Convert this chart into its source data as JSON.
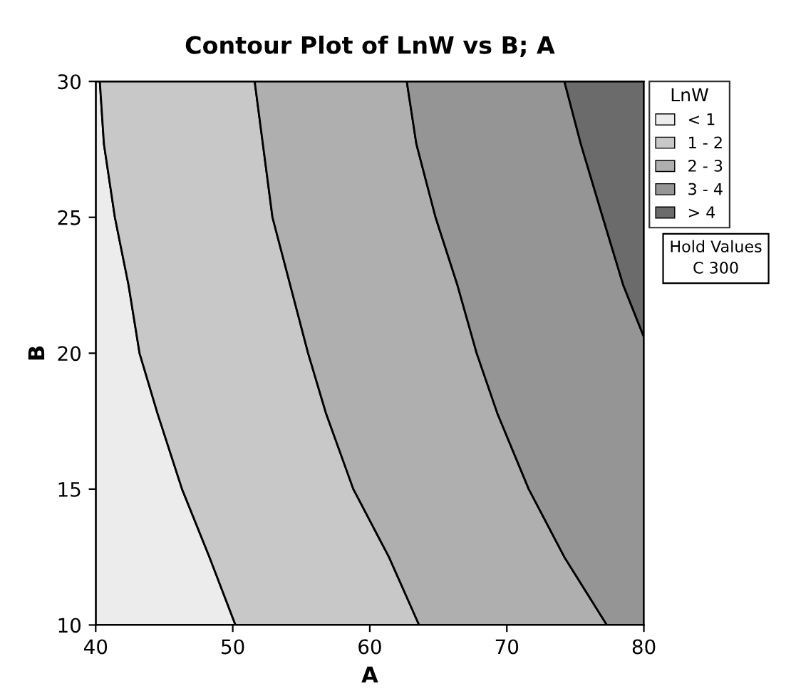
{
  "chart_data": {
    "type": "area",
    "title": "Contour Plot of LnW vs B; A",
    "xlabel": "A",
    "ylabel": "B",
    "legend_title": "LnW",
    "xlim": [
      40,
      80
    ],
    "ylim": [
      10,
      30
    ],
    "xticks": [
      40,
      50,
      60,
      70,
      80
    ],
    "yticks": [
      10,
      15,
      20,
      25,
      30
    ],
    "grid": false,
    "legend": "right",
    "series": [
      {
        "name": "< 1",
        "color": "#ececec",
        "x": [
          40,
          40.3,
          40.6,
          41.4,
          42.4,
          43.2,
          44.5,
          46.3,
          48.3,
          50.2,
          40
        ],
        "values": [
          30,
          30,
          27.7,
          25,
          22.5,
          20,
          17.8,
          15,
          12.5,
          10,
          10
        ]
      },
      {
        "name": "1 - 2",
        "color": "#c8c8c8",
        "x": [
          40.3,
          40.6,
          41.4,
          42.4,
          43.2,
          44.5,
          46.3,
          48.3,
          50.2,
          63.6,
          61.4,
          58.8,
          56.8,
          55.5,
          52.9,
          51.6
        ],
        "values": [
          30,
          27.7,
          25,
          22.5,
          20,
          17.8,
          15,
          12.5,
          10,
          10,
          12.5,
          15,
          17.8,
          20,
          25,
          30
        ]
      },
      {
        "name": "2 - 3",
        "color": "#afafaf",
        "x": [
          51.6,
          52.9,
          55.5,
          56.8,
          58.8,
          61.4,
          63.6,
          77.3,
          74.2,
          71.6,
          69.3,
          67.8,
          66.4,
          64.8,
          63.4,
          62.7
        ],
        "values": [
          30,
          25,
          20,
          17.8,
          15,
          12.5,
          10,
          10,
          12.5,
          15,
          17.8,
          20,
          22.5,
          25,
          27.7,
          30
        ]
      },
      {
        "name": "3 - 4",
        "color": "#959595",
        "x": [
          62.7,
          63.4,
          64.8,
          66.4,
          67.8,
          69.3,
          71.6,
          74.2,
          77.3,
          80,
          80,
          78.5,
          77.0,
          75.4,
          74.2
        ],
        "values": [
          30,
          27.7,
          25,
          22.5,
          20,
          17.8,
          15,
          12.5,
          10,
          10,
          20.6,
          22.5,
          25,
          27.7,
          30
        ]
      },
      {
        "name": "> 4",
        "color": "#6b6b6b",
        "x": [
          74.2,
          75.4,
          77.0,
          78.5,
          80,
          80
        ],
        "values": [
          30,
          27.7,
          25,
          22.5,
          20.6,
          30
        ]
      }
    ],
    "annotations": [
      "Hold Values",
      "C 300"
    ]
  }
}
